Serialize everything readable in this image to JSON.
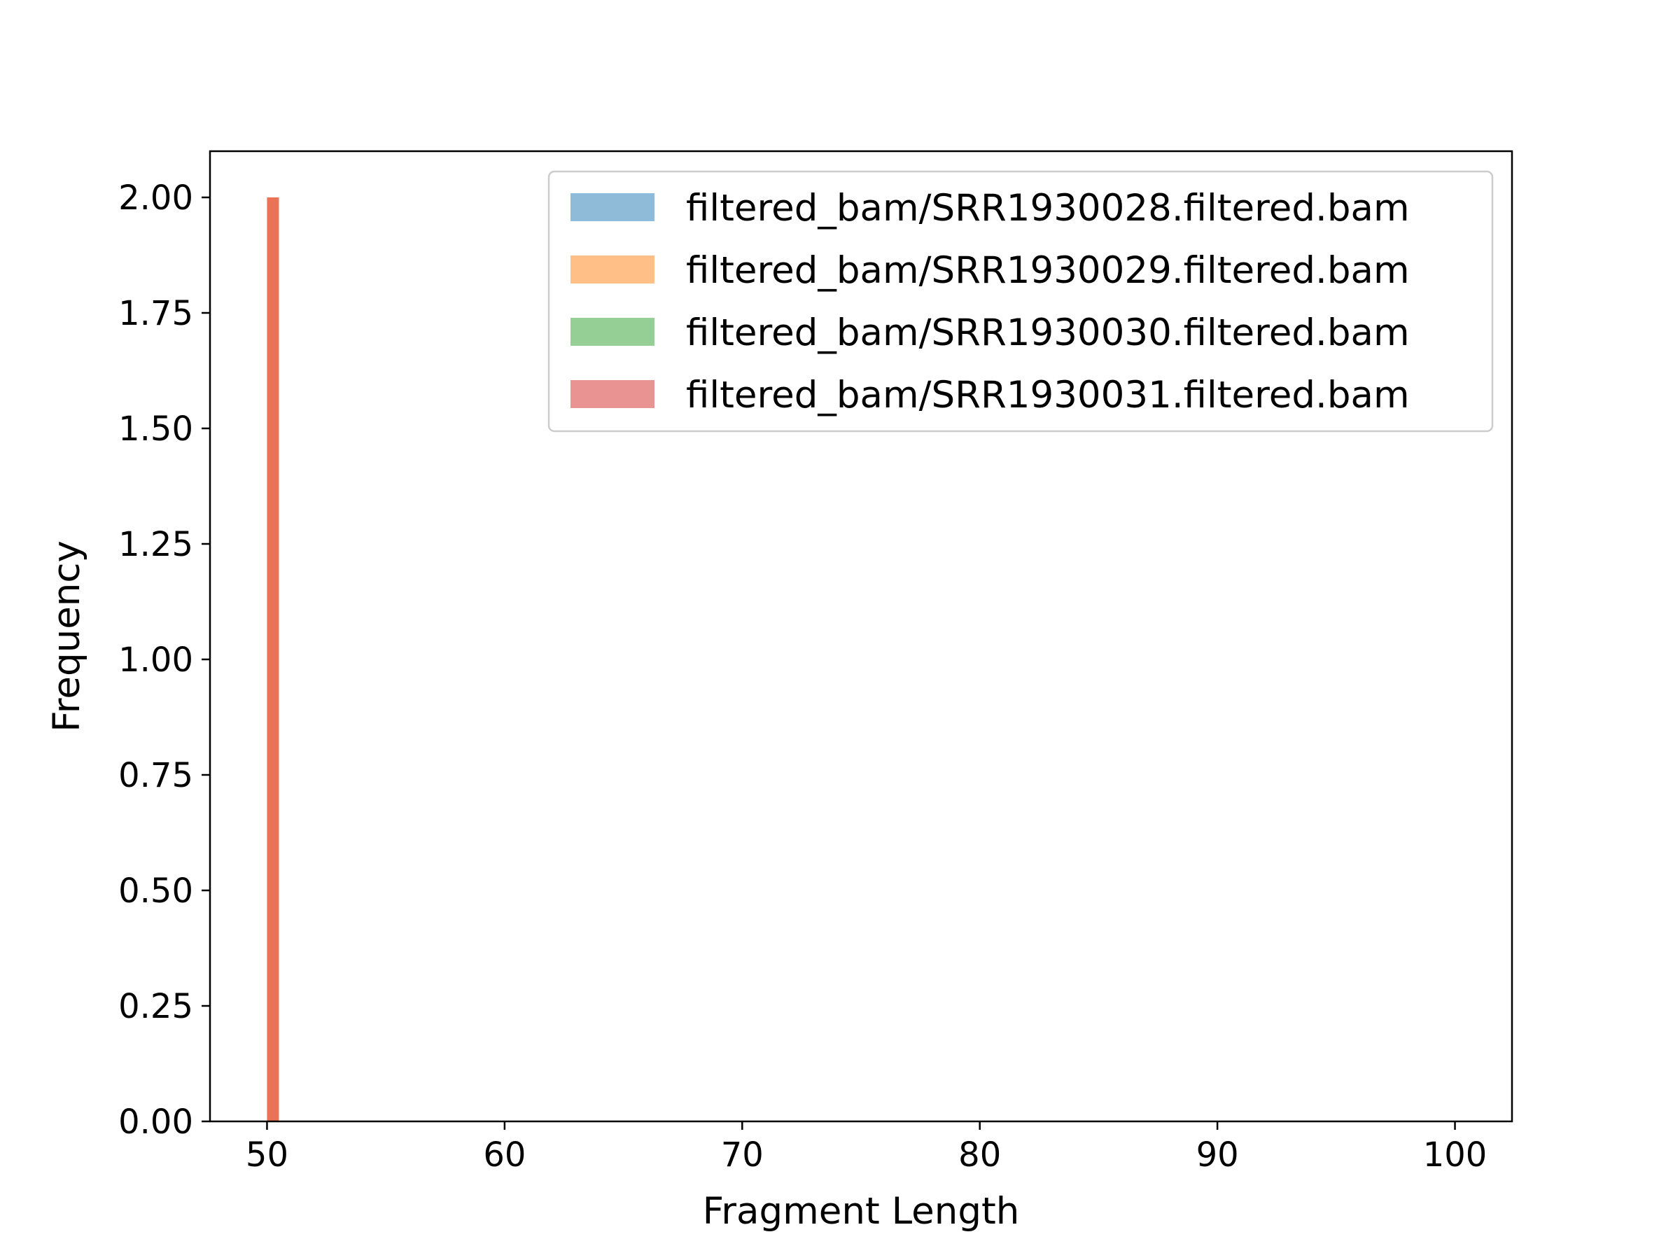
{
  "chart_data": {
    "type": "bar",
    "title": "",
    "xlabel": "Fragment Length",
    "ylabel": "Frequency",
    "xlim": [
      47.6,
      102.4
    ],
    "ylim": [
      0,
      2.1
    ],
    "xticks": [
      50,
      60,
      70,
      80,
      90,
      100
    ],
    "yticks": [
      0.0,
      0.25,
      0.5,
      0.75,
      1.0,
      1.25,
      1.5,
      1.75,
      2.0
    ],
    "xtick_labels": [
      "50",
      "60",
      "70",
      "80",
      "90",
      "100"
    ],
    "ytick_labels": [
      "0.00",
      "0.25",
      "0.50",
      "0.75",
      "1.00",
      "1.25",
      "1.50",
      "1.75",
      "2.00"
    ],
    "grid": false,
    "legend_position": "upper-right",
    "bin_width": 0.5,
    "series": [
      {
        "name": "filtered_bam/SRR1930028.filtered.bam",
        "color": "#1f77b4",
        "alpha": 0.5,
        "bins": [
          {
            "start": 50.0,
            "count": 0
          }
        ]
      },
      {
        "name": "filtered_bam/SRR1930029.filtered.bam",
        "color": "#ff7f0e",
        "alpha": 0.5,
        "bins": [
          {
            "start": 50.0,
            "count": 2
          }
        ]
      },
      {
        "name": "filtered_bam/SRR1930030.filtered.bam",
        "color": "#2ca02c",
        "alpha": 0.5,
        "bins": [
          {
            "start": 50.0,
            "count": 0
          }
        ]
      },
      {
        "name": "filtered_bam/SRR1930031.filtered.bam",
        "color": "#d62728",
        "alpha": 0.5,
        "bins": [
          {
            "start": 50.0,
            "count": 2
          }
        ]
      }
    ]
  }
}
